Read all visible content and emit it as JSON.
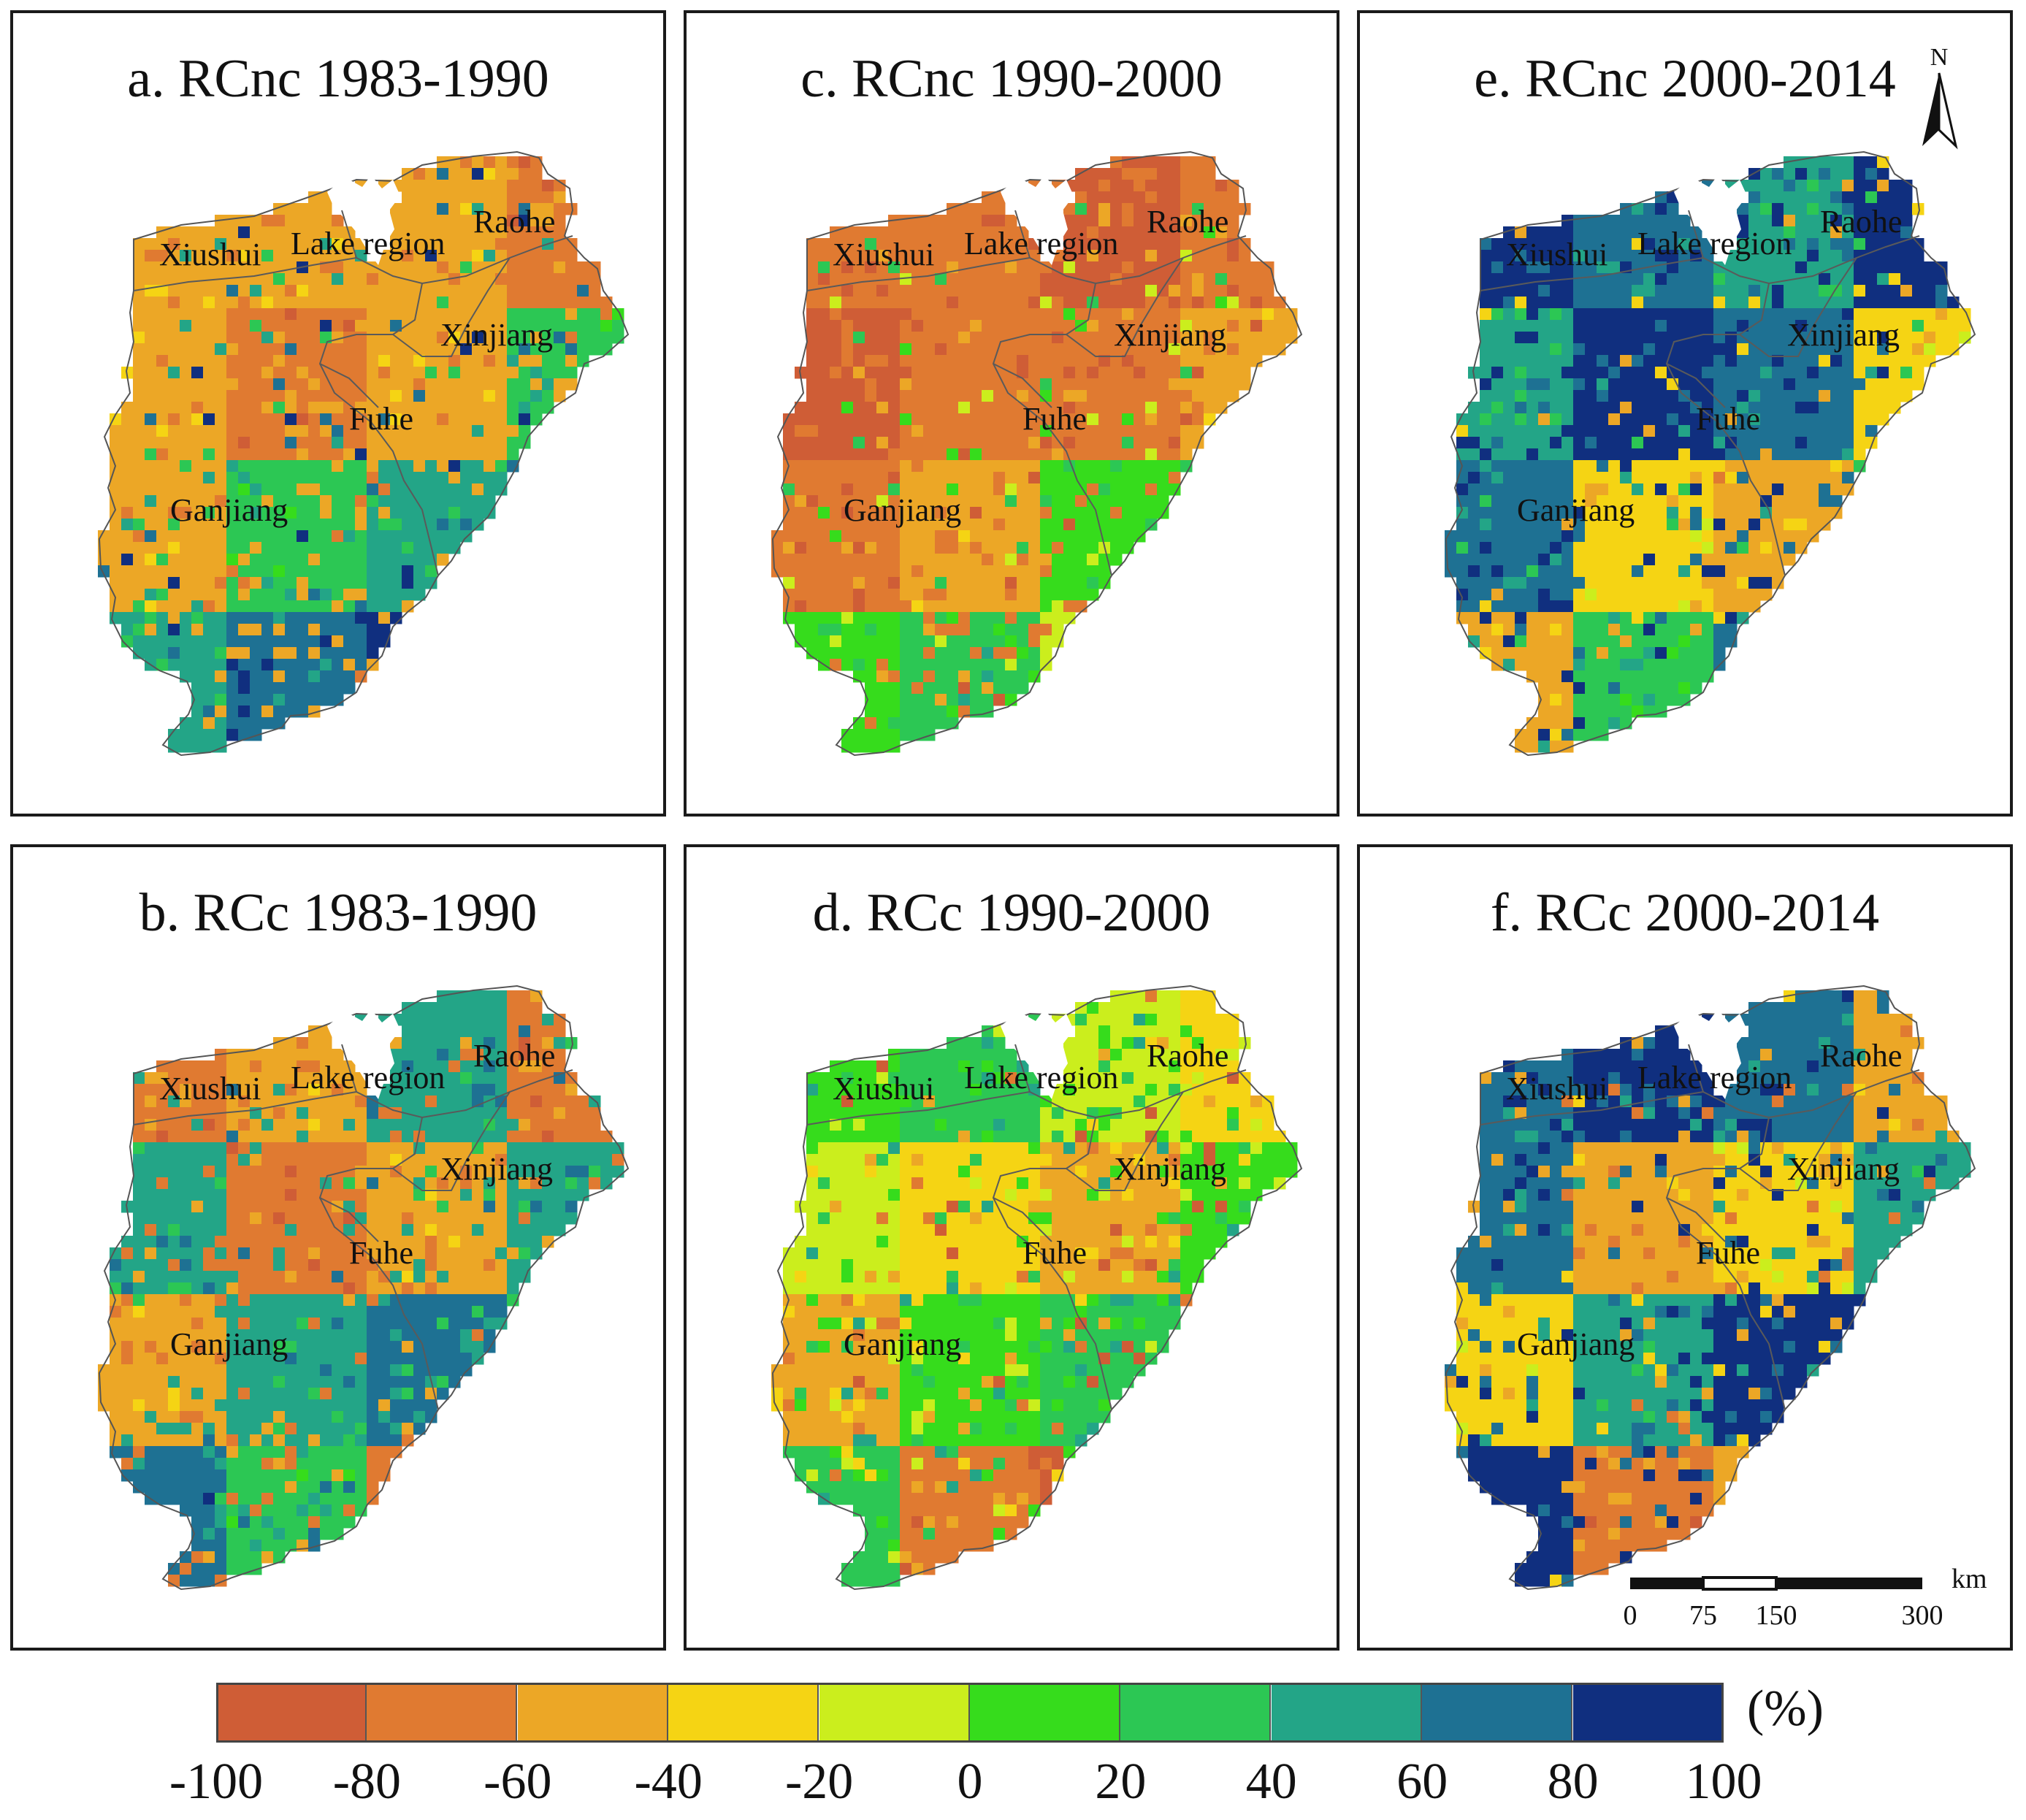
{
  "colors": [
    "#cf5d36",
    "#e07a31",
    "#eca726",
    "#f5d414",
    "#cbee1d",
    "#36dc1c",
    "#2cc754",
    "#23a587",
    "#1e7193",
    "#102f7f"
  ],
  "panels": [
    {
      "id": "a",
      "title": "a.  RCnc 1983-1990",
      "palette": [
        2,
        2,
        2,
        1,
        2,
        6,
        7,
        8,
        9,
        2
      ],
      "north": false,
      "scale": false
    },
    {
      "id": "c",
      "title": "c.  RCnc 1990-2000",
      "palette": [
        1,
        1,
        0,
        1,
        1,
        2,
        5,
        6,
        4,
        1
      ],
      "north": false,
      "scale": false
    },
    {
      "id": "e",
      "title": "e.  RCnc 2000-2014",
      "palette": [
        9,
        8,
        7,
        9,
        8,
        3,
        2,
        6,
        8,
        9
      ],
      "north": true,
      "scale": false
    },
    {
      "id": "b",
      "title": "b.  RCc 1983-1990",
      "palette": [
        1,
        2,
        7,
        1,
        2,
        7,
        8,
        6,
        1,
        7
      ],
      "north": false,
      "scale": false
    },
    {
      "id": "d",
      "title": "d.  RCc 1990-2000",
      "palette": [
        5,
        6,
        4,
        3,
        2,
        5,
        6,
        1,
        0,
        7
      ],
      "north": false,
      "scale": false
    },
    {
      "id": "f",
      "title": "f.  RCc 2000-2014",
      "palette": [
        8,
        9,
        8,
        2,
        3,
        7,
        9,
        1,
        2,
        8
      ],
      "north": false,
      "scale": true
    }
  ],
  "regions": {
    "xiushui": "Xiushui",
    "lake": "Lake region",
    "raohe": "Raohe",
    "xinjiang": "Xinjiang",
    "fuhe": "Fuhe",
    "ganjiang": "Ganjiang"
  },
  "north_arrow": {
    "letter": "N"
  },
  "scale_bar": {
    "unit": "km",
    "labels": [
      "0",
      "75",
      "150",
      "300"
    ]
  },
  "legend": {
    "unit": "(%)",
    "ticks": [
      "-100",
      "-80",
      "-60",
      "-40",
      "-20",
      "0",
      "20",
      "40",
      "60",
      "80",
      "100"
    ]
  }
}
